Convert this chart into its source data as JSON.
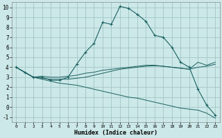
{
  "xlabel": "Humidex (Indice chaleur)",
  "bg_color": "#cce8e8",
  "grid_color": "#9bbfbf",
  "line_color": "#1a6060",
  "xlim": [
    -0.5,
    23.5
  ],
  "ylim": [
    -1.5,
    10.5
  ],
  "xticks": [
    0,
    1,
    2,
    3,
    4,
    5,
    6,
    7,
    8,
    9,
    10,
    11,
    12,
    13,
    14,
    15,
    16,
    17,
    18,
    19,
    20,
    21,
    22,
    23
  ],
  "yticks": [
    -1,
    0,
    1,
    2,
    3,
    4,
    5,
    6,
    7,
    8,
    9,
    10
  ],
  "line1_x": [
    0,
    1,
    2,
    3,
    4,
    5,
    6,
    7,
    8,
    9,
    10,
    11,
    12,
    13,
    14,
    15,
    16,
    17,
    18,
    19,
    20,
    21,
    22,
    23
  ],
  "line1_y": [
    4.0,
    3.5,
    3.0,
    3.0,
    2.7,
    2.7,
    3.0,
    4.3,
    5.5,
    6.4,
    8.5,
    8.3,
    10.1,
    9.9,
    9.3,
    8.6,
    7.2,
    7.0,
    6.0,
    4.5,
    4.0,
    1.8,
    0.2,
    -0.8
  ],
  "line2_x": [
    0,
    2,
    3,
    4,
    5,
    6,
    7,
    8,
    9,
    10,
    11,
    12,
    13,
    14,
    15,
    16,
    17,
    18,
    19,
    20,
    21,
    22,
    23
  ],
  "line2_y": [
    4.0,
    3.0,
    3.1,
    3.0,
    3.0,
    3.1,
    3.2,
    3.4,
    3.5,
    3.7,
    3.8,
    3.9,
    4.0,
    4.1,
    4.2,
    4.2,
    4.1,
    4.0,
    3.9,
    3.8,
    4.5,
    4.2,
    4.5
  ],
  "line3_x": [
    0,
    2,
    3,
    4,
    5,
    6,
    7,
    8,
    9,
    10,
    11,
    12,
    13,
    14,
    15,
    16,
    17,
    18,
    19,
    20,
    21,
    22,
    23
  ],
  "line3_y": [
    4.0,
    3.0,
    2.9,
    2.8,
    2.8,
    2.8,
    2.9,
    3.0,
    3.2,
    3.4,
    3.6,
    3.8,
    3.9,
    4.0,
    4.1,
    4.15,
    4.1,
    4.0,
    3.9,
    3.8,
    4.0,
    4.1,
    4.3
  ],
  "line4_x": [
    0,
    1,
    2,
    3,
    4,
    5,
    6,
    7,
    8,
    9,
    10,
    11,
    12,
    13,
    14,
    15,
    16,
    17,
    18,
    19,
    20,
    21,
    22,
    23
  ],
  "line4_y": [
    4.0,
    3.5,
    3.0,
    2.8,
    2.6,
    2.4,
    2.3,
    2.2,
    2.0,
    1.8,
    1.6,
    1.4,
    1.2,
    1.0,
    0.9,
    0.7,
    0.5,
    0.3,
    0.1,
    -0.1,
    -0.2,
    -0.3,
    -0.6,
    -1.1
  ]
}
